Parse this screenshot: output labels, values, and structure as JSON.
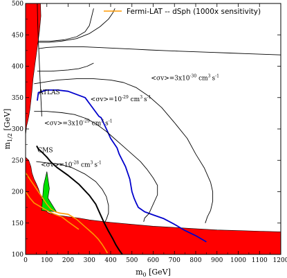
{
  "chart_data": {
    "type": "line",
    "xlabel_main": "m",
    "xlabel_sub": "0",
    "xlabel_unit": " [GeV]",
    "ylabel_main": "m",
    "ylabel_sub": "1/2",
    "ylabel_unit": " [GeV]",
    "xlim": [
      0,
      1200
    ],
    "ylim": [
      100,
      500
    ],
    "x_ticks": [
      0,
      100,
      200,
      300,
      400,
      500,
      600,
      700,
      800,
      900,
      1000,
      1100,
      1200
    ],
    "y_ticks": [
      100,
      150,
      200,
      250,
      300,
      350,
      400,
      450,
      500
    ],
    "legend": {
      "placement": "top-right",
      "entries": [
        {
          "label": "Fermi-LAT -- dSph (1000x sensitivity)",
          "color": "#ff9900"
        }
      ]
    },
    "colors": {
      "excluded": "#ff0000",
      "allowed_strip": "#00e000",
      "atlas": "#0000cc",
      "cms": "#000000",
      "contour": "#000000",
      "fermi": "#ff9900"
    },
    "annotations": [
      {
        "prefix": "<σv>=3x10",
        "exp": "-30",
        "unit": " cm",
        "unit_exp": "3",
        "tail": "s",
        "tail_exp": "-1",
        "x": 590,
        "y": 378
      },
      {
        "prefix": "<σv>=10",
        "exp": "-29",
        "unit": " cm",
        "unit_exp": "3",
        "tail": "s",
        "tail_exp": "-1",
        "x": 305,
        "y": 344
      },
      {
        "prefix": "<σv>=3x10",
        "exp": "-29",
        "unit": " cm",
        "unit_exp": "3",
        "tail": "s",
        "tail_exp": "-1",
        "x": 88,
        "y": 306
      },
      {
        "prefix": "<σv>=10",
        "exp": "-28",
        "unit": " cm",
        "unit_exp": "3",
        "tail": "s",
        "tail_exp": "-1",
        "x": 72,
        "y": 240
      }
    ],
    "labels": [
      {
        "text": "ATLAS",
        "x": 62,
        "y": 355,
        "color": "#0000cc"
      },
      {
        "text": "CMS",
        "x": 56,
        "y": 263,
        "color": "#000000"
      }
    ],
    "excluded_regions": [
      {
        "name": "upper-left-red",
        "x": [
          0,
          0,
          70,
          72,
          65,
          55,
          45,
          35,
          30,
          25,
          20,
          15,
          10,
          5
        ],
        "y": [
          290,
          500,
          500,
          480,
          455,
          430,
          405,
          380,
          360,
          345,
          330,
          320,
          312,
          305
        ]
      },
      {
        "name": "lower-red",
        "x": [
          0,
          0,
          15,
          25,
          30,
          40,
          50,
          60,
          70,
          80,
          90,
          100,
          110,
          130,
          160,
          200,
          250,
          300,
          400,
          500,
          600,
          700,
          800,
          900,
          1000,
          1100,
          1200,
          1200
        ],
        "y": [
          100,
          255,
          250,
          240,
          230,
          220,
          213,
          205,
          195,
          185,
          175,
          168,
          166,
          164,
          162,
          160,
          158,
          155,
          151,
          148,
          145,
          143,
          141,
          139,
          138,
          137,
          136,
          100
        ]
      }
    ],
    "allowed_strip": {
      "x": [
        75,
        85,
        100,
        112,
        105,
        145,
        75
      ],
      "y": [
        170,
        210,
        232,
        205,
        190,
        168,
        170
      ]
    },
    "series": [
      {
        "name": "ATLAS",
        "color": "#0000cc",
        "width": 1.8,
        "x": [
          55,
          60,
          100,
          150,
          200,
          280,
          345,
          355,
          380,
          400,
          430,
          440,
          470,
          490,
          500,
          510,
          520,
          530,
          560,
          600,
          650,
          700,
          750,
          800,
          850
        ],
        "y": [
          345,
          358,
          362,
          362,
          360,
          350,
          320,
          318,
          300,
          285,
          270,
          260,
          240,
          220,
          200,
          190,
          182,
          175,
          168,
          163,
          157,
          148,
          138,
          130,
          120
        ]
      },
      {
        "name": "CMS",
        "color": "#000000",
        "width": 2.0,
        "x": [
          52,
          60,
          80,
          100,
          120,
          150,
          200,
          250,
          300,
          330,
          350,
          370,
          390,
          410,
          425,
          440,
          455
        ],
        "y": [
          273,
          268,
          262,
          255,
          247,
          238,
          226,
          212,
          194,
          180,
          165,
          150,
          137,
          125,
          115,
          107,
          100
        ]
      },
      {
        "name": "Fermi-LAT",
        "color": "#ff9900",
        "width": 1.6,
        "x": [
          0,
          20,
          40,
          60,
          80,
          100,
          120,
          140,
          160,
          180,
          200,
          220,
          240,
          260,
          280,
          300,
          320,
          340,
          360,
          375,
          385
        ],
        "y": [
          230,
          220,
          210,
          200,
          190,
          180,
          172,
          168,
          166,
          165,
          164,
          160,
          156,
          150,
          144,
          138,
          132,
          125,
          116,
          108,
          102
        ]
      },
      {
        "name": "Fermi-LAT-lower",
        "color": "#ff9900",
        "width": 1.6,
        "x": [
          0,
          10,
          20,
          40,
          60,
          80,
          100,
          130,
          170,
          200,
          250
        ],
        "y": [
          200,
          195,
          190,
          182,
          178,
          174,
          170,
          165,
          160,
          152,
          140
        ]
      },
      {
        "name": "contour-3e-30",
        "color": "#000000",
        "width": 0.9,
        "x": [
          60,
          100,
          160,
          260,
          340,
          400,
          460,
          520,
          580,
          650,
          720,
          800,
          880,
          960,
          1040,
          1120,
          1200
        ],
        "y": [
          428,
          430,
          431,
          431,
          430,
          429,
          428,
          427,
          426,
          425,
          424,
          423,
          422,
          421,
          420,
          419,
          418
        ]
      },
      {
        "name": "contour-3e-30-b",
        "color": "#000000",
        "width": 0.9,
        "x": [
          60,
          110,
          170,
          240,
          300,
          350,
          390,
          410,
          420
        ],
        "y": [
          438,
          438,
          440,
          444,
          452,
          463,
          475,
          485,
          492
        ]
      },
      {
        "name": "contour-1e-29",
        "color": "#000000",
        "width": 0.9,
        "x": [
          40,
          150,
          240,
          320,
          400,
          460,
          520,
          580,
          640,
          700,
          760,
          800,
          840,
          870,
          880,
          880,
          870,
          855,
          845
        ],
        "y": [
          372,
          378,
          380,
          380,
          378,
          374,
          366,
          352,
          334,
          310,
          285,
          260,
          238,
          215,
          200,
          185,
          170,
          160,
          150
        ]
      },
      {
        "name": "contour-3e-29",
        "color": "#000000",
        "width": 0.9,
        "x": [
          40,
          100,
          170,
          230,
          290,
          340,
          380,
          420,
          460,
          500,
          540,
          570,
          600,
          620,
          620,
          600,
          580,
          560,
          555
        ],
        "y": [
          328,
          328,
          326,
          323,
          316,
          306,
          296,
          284,
          272,
          260,
          248,
          236,
          222,
          210,
          195,
          180,
          165,
          158,
          152
        ]
      },
      {
        "name": "contour-1e-28",
        "color": "#000000",
        "width": 0.9,
        "x": [
          50,
          100,
          160,
          220,
          280,
          330,
          360,
          380,
          390,
          390,
          380,
          370
        ],
        "y": [
          248,
          246,
          244,
          238,
          228,
          216,
          204,
          192,
          178,
          166,
          156,
          150
        ]
      },
      {
        "name": "contour-top-1",
        "color": "#000000",
        "width": 0.9,
        "x": [
          62,
          120,
          180,
          240,
          280,
          300,
          310,
          320
        ],
        "y": [
          440,
          440,
          442,
          447,
          455,
          465,
          478,
          492
        ]
      },
      {
        "name": "contour-top-2",
        "color": "#000000",
        "width": 0.9,
        "x": [
          55,
          120,
          200,
          250,
          290,
          320
        ],
        "y": [
          392,
          392,
          394,
          396,
          400,
          405
        ]
      },
      {
        "name": "contour-edge",
        "color": "#000000",
        "width": 0.9,
        "x": [
          55,
          57,
          60,
          64,
          68,
          72,
          76
        ],
        "y": [
          500,
          470,
          440,
          410,
          380,
          350,
          320
        ]
      }
    ]
  }
}
